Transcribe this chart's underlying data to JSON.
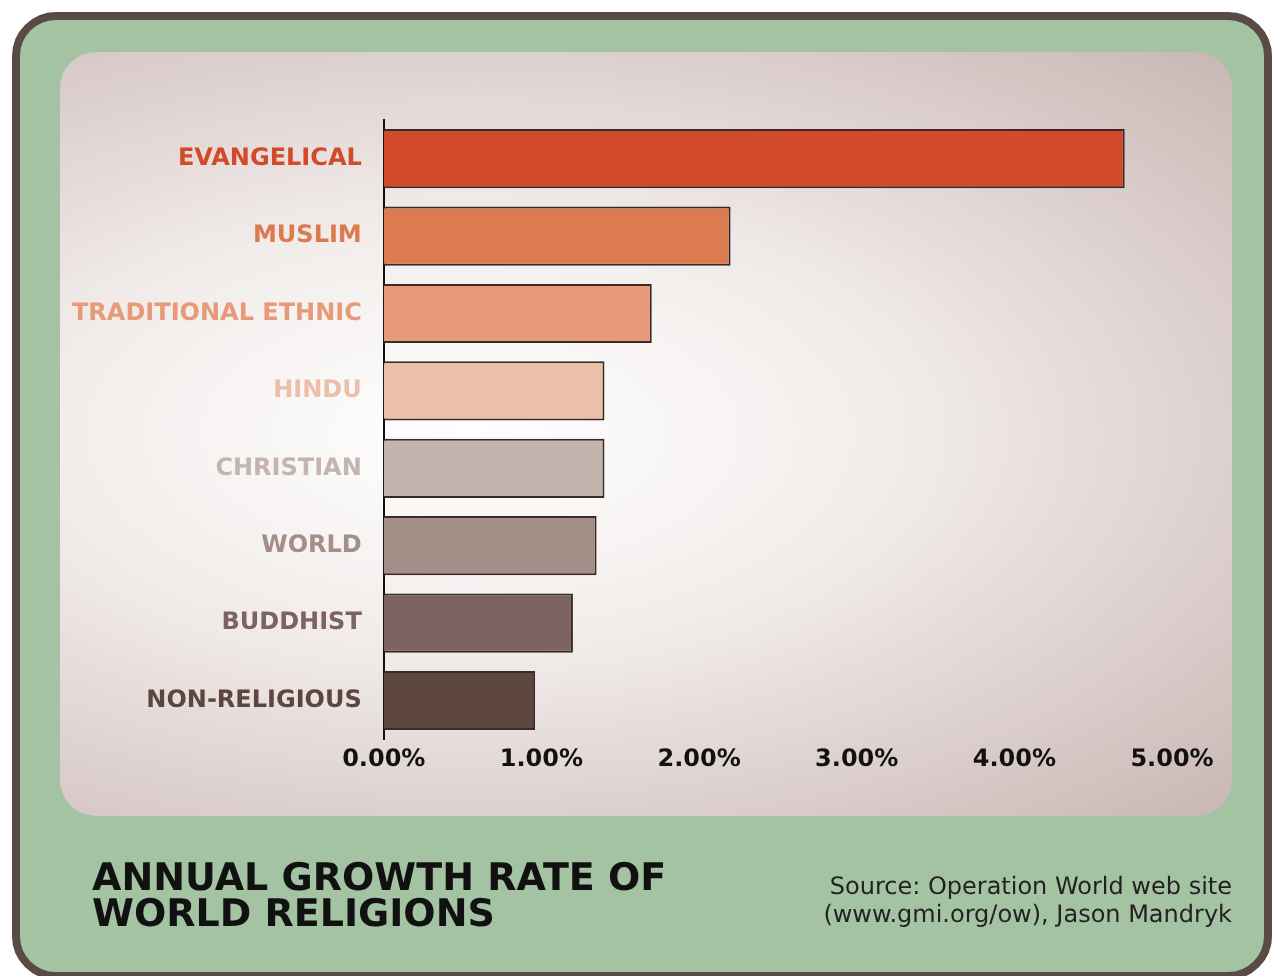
{
  "chart_data": {
    "type": "bar",
    "orientation": "horizontal",
    "title": "ANNUAL GROWTH RATE OF WORLD RELIGIONS",
    "categories": [
      "EVANGELICAL",
      "MUSLIM",
      "TRADITIONAL ETHNIC",
      "HINDU",
      "CHRISTIAN",
      "WORLD",
      "BUDDHIST",
      "NON-RELIGIOUS"
    ],
    "values": [
      4.7,
      2.2,
      1.7,
      1.4,
      1.4,
      1.35,
      1.2,
      0.96
    ],
    "colors": [
      "#d24a2a",
      "#dc7a50",
      "#e69a78",
      "#ecc0a8",
      "#c4b4ae",
      "#a48e88",
      "#7c6260",
      "#5e4640"
    ],
    "xlim": [
      0,
      5
    ],
    "xticks": [
      {
        "value": 0,
        "label": "0.00%"
      },
      {
        "value": 1,
        "label": "1.00%"
      },
      {
        "value": 2,
        "label": "2.00%"
      },
      {
        "value": 3,
        "label": "3.00%"
      },
      {
        "value": 4,
        "label": "4.00%"
      },
      {
        "value": 5,
        "label": "5.00%"
      }
    ],
    "grid": false,
    "legend": false,
    "annotations": [
      "Source: Operation World web site (www.gmi.org/ow), Jason Mandryk"
    ]
  }
}
